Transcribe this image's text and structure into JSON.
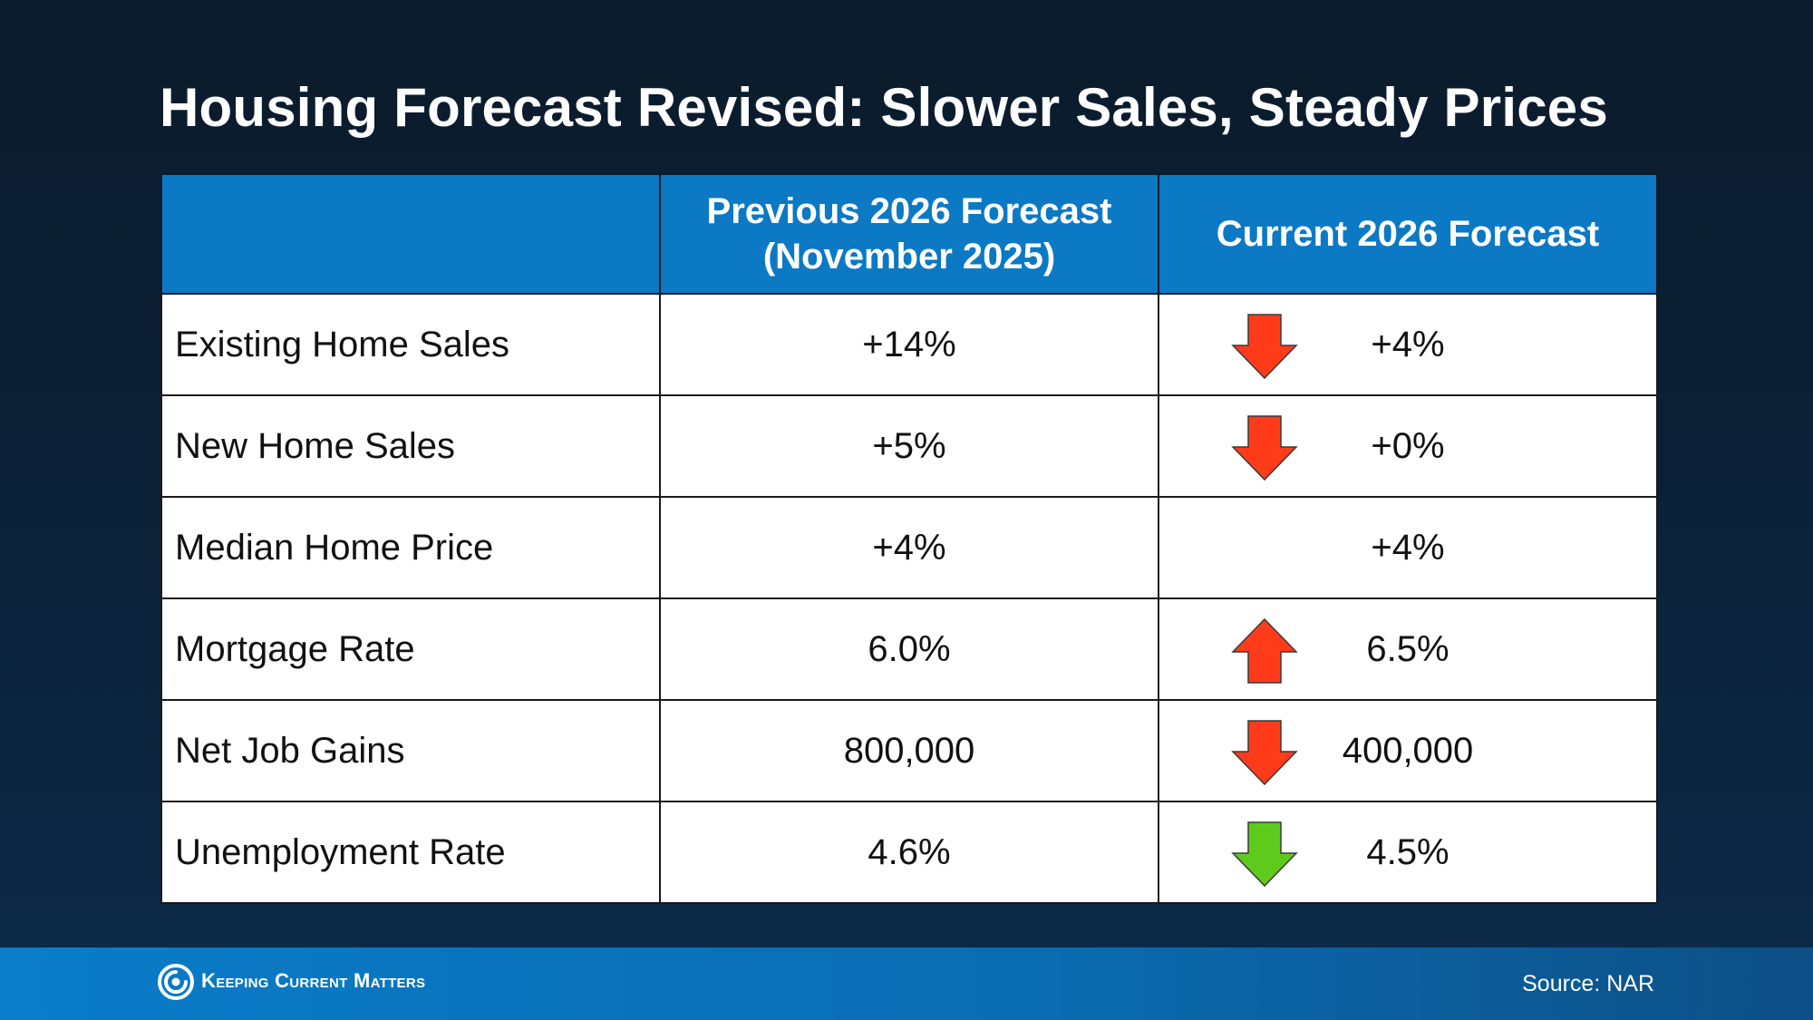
{
  "title": "Housing Forecast Revised: Slower Sales, Steady Prices",
  "colors": {
    "header_bg": "#0b79c4",
    "arrow_red": "#ff3b1a",
    "arrow_green": "#5ecb1c",
    "footer_bg": "#0a7cc9"
  },
  "chart_data": {
    "type": "table",
    "columns": [
      "",
      "Previous 2026 Forecast\n(November 2025)",
      "Current 2026 Forecast"
    ],
    "rows": [
      {
        "metric": "Existing Home Sales",
        "previous": "+14%",
        "current": "+4%",
        "change": "down",
        "arrow_color": "red"
      },
      {
        "metric": "New Home Sales",
        "previous": "+5%",
        "current": "+0%",
        "change": "down",
        "arrow_color": "red"
      },
      {
        "metric": "Median Home Price",
        "previous": "+4%",
        "current": "+4%",
        "change": "none",
        "arrow_color": ""
      },
      {
        "metric": "Mortgage Rate",
        "previous": "6.0%",
        "current": "6.5%",
        "change": "up",
        "arrow_color": "red"
      },
      {
        "metric": "Net Job Gains",
        "previous": "800,000",
        "current": "400,000",
        "change": "down",
        "arrow_color": "red"
      },
      {
        "metric": "Unemployment Rate",
        "previous": "4.6%",
        "current": "4.5%",
        "change": "down",
        "arrow_color": "green"
      }
    ]
  },
  "footer": {
    "brand": "Keeping Current Matters",
    "logo_icon": "kcm-swirl-logo-icon",
    "source": "Source: NAR"
  }
}
